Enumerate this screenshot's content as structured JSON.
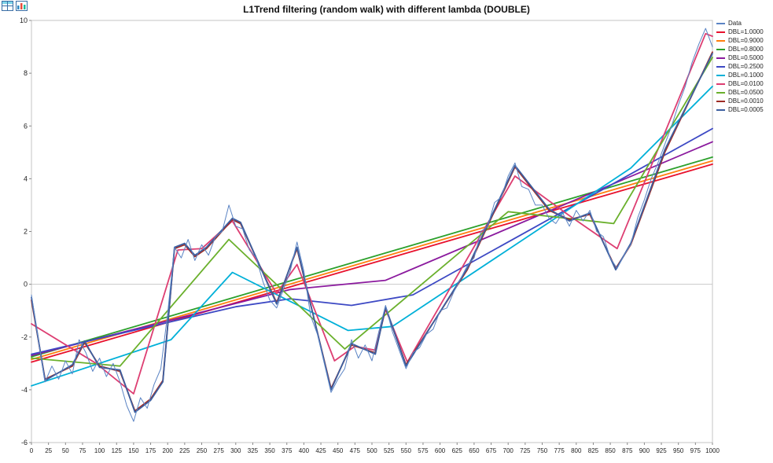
{
  "toolbar": {
    "icons": [
      "table-icon",
      "chart-icon"
    ]
  },
  "chart_data": {
    "type": "line",
    "title": "L1Trend filtering (random walk) with different lambda (DOUBLE)",
    "xlabel": "",
    "ylabel": "",
    "xlim": [
      0,
      1000
    ],
    "ylim": [
      -6,
      10
    ],
    "x_tick_step": 25,
    "y_tick_step": 2,
    "grid": "zero-line-only",
    "legend_position": "top-right-outside",
    "colors": {
      "border": "#c4c4c4",
      "zero_line": "#c9c9c9",
      "tick_text": "#222222"
    },
    "series": [
      {
        "name": "Data",
        "color": "#5b84c4",
        "width": 1,
        "z": 99,
        "x_start": 0,
        "x_step": 10,
        "values": [
          -0.4,
          -2.1,
          -3.7,
          -3.1,
          -3.6,
          -2.9,
          -3.4,
          -2.1,
          -2.6,
          -3.3,
          -2.8,
          -3.5,
          -3.0,
          -3.7,
          -4.6,
          -5.2,
          -4.3,
          -4.7,
          -3.8,
          -3.2,
          -1.1,
          1.4,
          1.0,
          1.7,
          0.9,
          1.5,
          1.1,
          1.8,
          2.0,
          3.0,
          2.2,
          2.1,
          1.3,
          1.0,
          0.1,
          -0.6,
          -0.9,
          -0.2,
          0.5,
          1.6,
          0.5,
          -1.2,
          -1.9,
          -3.0,
          -4.1,
          -3.6,
          -3.2,
          -2.1,
          -2.8,
          -2.3,
          -2.9,
          -1.8,
          -0.8,
          -1.8,
          -2.5,
          -3.2,
          -2.6,
          -2.4,
          -1.9,
          -1.7,
          -1.0,
          -0.9,
          -0.3,
          0.2,
          0.7,
          1.0,
          2.0,
          2.2,
          3.1,
          3.3,
          4.1,
          4.6,
          3.7,
          3.6,
          3.0,
          3.0,
          2.5,
          2.3,
          2.7,
          2.2,
          2.8,
          2.4,
          2.8,
          2.0,
          1.8,
          1.0,
          0.6,
          1.1,
          1.5,
          2.5,
          3.2,
          4.0,
          4.6,
          5.3,
          6.0,
          6.8,
          7.5,
          8.4,
          9.1,
          9.7,
          9.0
        ]
      },
      {
        "name": "DBL=1.0000",
        "color": "#e8112d",
        "width": 1.8,
        "z": 1,
        "points": [
          [
            0,
            -2.95
          ],
          [
            1000,
            4.55
          ]
        ]
      },
      {
        "name": "DBL=0.9000",
        "color": "#ff7f0e",
        "width": 1.8,
        "z": 2,
        "points": [
          [
            0,
            -2.85
          ],
          [
            1000,
            4.68
          ]
        ]
      },
      {
        "name": "DBL=0.8000",
        "color": "#2ca02c",
        "width": 1.8,
        "z": 3,
        "points": [
          [
            0,
            -2.75
          ],
          [
            1000,
            4.82
          ]
        ]
      },
      {
        "name": "DBL=0.5000",
        "color": "#8b1a9e",
        "width": 1.8,
        "z": 4,
        "points": [
          [
            0,
            -2.7
          ],
          [
            380,
            -0.2
          ],
          [
            520,
            0.15
          ],
          [
            1000,
            5.4
          ]
        ]
      },
      {
        "name": "DBL=0.2500",
        "color": "#3d49c4",
        "width": 1.8,
        "z": 5,
        "points": [
          [
            0,
            -2.65
          ],
          [
            200,
            -1.45
          ],
          [
            300,
            -0.85
          ],
          [
            380,
            -0.55
          ],
          [
            470,
            -0.8
          ],
          [
            560,
            -0.4
          ],
          [
            1000,
            5.9
          ]
        ]
      },
      {
        "name": "DBL=0.1000",
        "color": "#00b0d8",
        "width": 1.8,
        "z": 6,
        "points": [
          [
            0,
            -3.85
          ],
          [
            205,
            -2.1
          ],
          [
            295,
            0.45
          ],
          [
            465,
            -1.75
          ],
          [
            530,
            -1.6
          ],
          [
            880,
            4.4
          ],
          [
            1000,
            7.5
          ]
        ]
      },
      {
        "name": "DBL=0.0100",
        "color": "#dd3e72",
        "width": 1.8,
        "z": 7,
        "points": [
          [
            0,
            -1.5
          ],
          [
            95,
            -3.0
          ],
          [
            150,
            -4.15
          ],
          [
            215,
            1.3
          ],
          [
            250,
            1.35
          ],
          [
            295,
            2.4
          ],
          [
            360,
            -0.35
          ],
          [
            390,
            0.75
          ],
          [
            445,
            -2.9
          ],
          [
            475,
            -2.35
          ],
          [
            505,
            -2.5
          ],
          [
            520,
            -0.95
          ],
          [
            552,
            -2.95
          ],
          [
            710,
            4.1
          ],
          [
            790,
            2.6
          ],
          [
            860,
            1.35
          ],
          [
            990,
            9.5
          ],
          [
            1000,
            9.4
          ]
        ]
      },
      {
        "name": "DBL=0.0500",
        "color": "#6ab02c",
        "width": 1.8,
        "z": 8,
        "points": [
          [
            0,
            -2.8
          ],
          [
            130,
            -3.1
          ],
          [
            290,
            1.7
          ],
          [
            460,
            -2.45
          ],
          [
            700,
            2.75
          ],
          [
            855,
            2.3
          ],
          [
            1000,
            8.6
          ]
        ]
      },
      {
        "name": "DBL=0.0010",
        "color": "#9e2b25",
        "width": 1.8,
        "z": 9,
        "points": [
          [
            0,
            -0.6
          ],
          [
            20,
            -3.6
          ],
          [
            60,
            -3.1
          ],
          [
            78,
            -2.2
          ],
          [
            100,
            -3.1
          ],
          [
            130,
            -3.3
          ],
          [
            152,
            -4.8
          ],
          [
            175,
            -4.35
          ],
          [
            193,
            -3.65
          ],
          [
            210,
            1.35
          ],
          [
            225,
            1.5
          ],
          [
            240,
            1.05
          ],
          [
            257,
            1.35
          ],
          [
            295,
            2.45
          ],
          [
            307,
            2.3
          ],
          [
            360,
            -0.7
          ],
          [
            390,
            1.35
          ],
          [
            440,
            -3.95
          ],
          [
            470,
            -2.3
          ],
          [
            505,
            -2.6
          ],
          [
            520,
            -0.9
          ],
          [
            550,
            -3.05
          ],
          [
            640,
            0.55
          ],
          [
            710,
            4.45
          ],
          [
            760,
            2.8
          ],
          [
            790,
            2.45
          ],
          [
            820,
            2.65
          ],
          [
            858,
            0.6
          ],
          [
            880,
            1.5
          ],
          [
            930,
            5.0
          ],
          [
            1000,
            8.8
          ]
        ]
      },
      {
        "name": "DBL=0.0005",
        "color": "#3c5fa0",
        "width": 1.8,
        "z": 10,
        "points": [
          [
            0,
            -0.5
          ],
          [
            20,
            -3.65
          ],
          [
            60,
            -3.05
          ],
          [
            78,
            -2.15
          ],
          [
            100,
            -3.15
          ],
          [
            130,
            -3.25
          ],
          [
            152,
            -4.85
          ],
          [
            175,
            -4.4
          ],
          [
            193,
            -3.7
          ],
          [
            210,
            1.4
          ],
          [
            225,
            1.55
          ],
          [
            240,
            1.1
          ],
          [
            257,
            1.4
          ],
          [
            295,
            2.5
          ],
          [
            307,
            2.35
          ],
          [
            360,
            -0.75
          ],
          [
            390,
            1.4
          ],
          [
            440,
            -4.0
          ],
          [
            470,
            -2.25
          ],
          [
            505,
            -2.65
          ],
          [
            520,
            -0.85
          ],
          [
            550,
            -3.1
          ],
          [
            640,
            0.6
          ],
          [
            710,
            4.5
          ],
          [
            760,
            2.85
          ],
          [
            790,
            2.4
          ],
          [
            820,
            2.7
          ],
          [
            858,
            0.55
          ],
          [
            880,
            1.55
          ],
          [
            930,
            5.1
          ],
          [
            1000,
            8.75
          ]
        ]
      }
    ]
  }
}
